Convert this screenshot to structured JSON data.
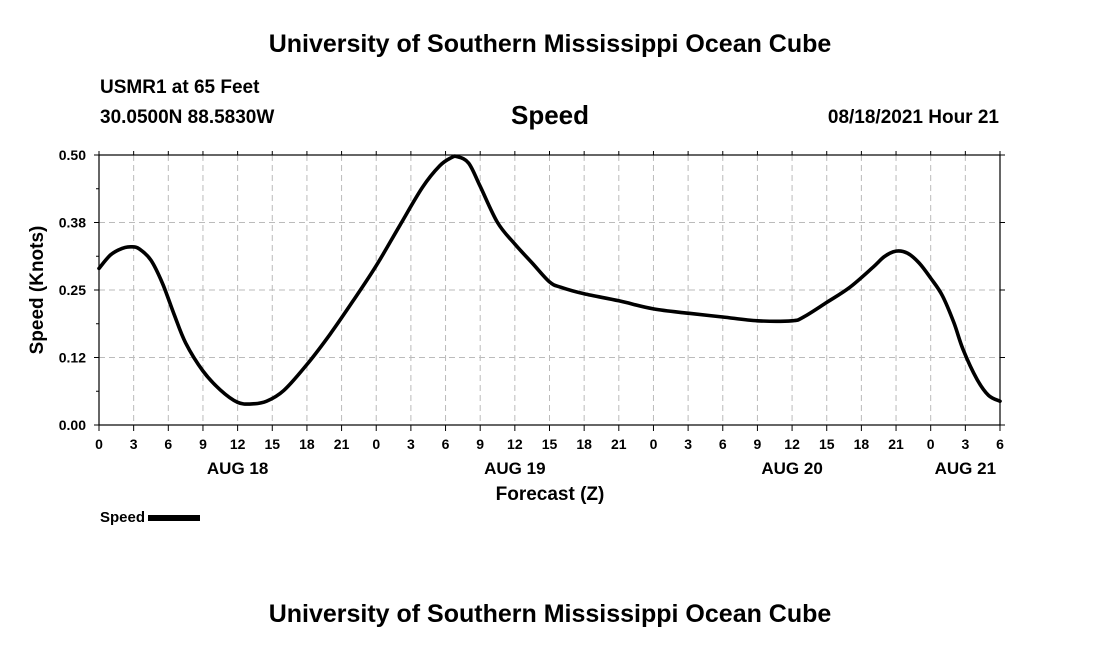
{
  "header": {
    "title": "University of Southern Mississippi Ocean Cube",
    "station": "USMR1 at 65 Feet",
    "coordinates": "30.0500N  88.5830W",
    "variable": "Speed",
    "datetime": "08/18/2021 Hour 21"
  },
  "footer": {
    "title": "University of Southern Mississippi Ocean Cube"
  },
  "legend": {
    "label": "Speed"
  },
  "chart_data": {
    "type": "line",
    "title": "Speed",
    "xlabel": "Forecast (Z)",
    "ylabel": "Speed (Knots)",
    "ylim": [
      0,
      0.5
    ],
    "xlim": [
      0,
      78
    ],
    "x_unit": "hours since AUG 18 00Z",
    "grid": true,
    "y_ticks": [
      0,
      0.125,
      0.25,
      0.375,
      0.5
    ],
    "y_tick_labels": [
      "0.00",
      "0.12",
      "0.25",
      "0.38",
      "0.50"
    ],
    "x_ticks": [
      0,
      3,
      6,
      9,
      12,
      15,
      18,
      21,
      24,
      27,
      30,
      33,
      36,
      39,
      42,
      45,
      48,
      51,
      54,
      57,
      60,
      63,
      66,
      69,
      72,
      75,
      78
    ],
    "x_tick_labels": [
      "0",
      "3",
      "6",
      "9",
      "12",
      "15",
      "18",
      "21",
      "0",
      "3",
      "6",
      "9",
      "12",
      "15",
      "18",
      "21",
      "0",
      "3",
      "6",
      "9",
      "12",
      "15",
      "18",
      "21",
      "0",
      "3",
      "6"
    ],
    "day_labels": [
      {
        "hour": 12,
        "label": "AUG 18"
      },
      {
        "hour": 36,
        "label": "AUG 19"
      },
      {
        "hour": 60,
        "label": "AUG 20"
      },
      {
        "hour": 75,
        "label": "AUG 21"
      }
    ],
    "series": [
      {
        "name": "Speed",
        "color": "#000000",
        "x": [
          0,
          1,
          2,
          2.8,
          3.5,
          4.5,
          5.5,
          6.5,
          7.5,
          9,
          10.5,
          12,
          13.2,
          14.5,
          16,
          18,
          20,
          22,
          24,
          26,
          28,
          29.5,
          30.5,
          31,
          32,
          33,
          34.5,
          36,
          37.5,
          39,
          40,
          42,
          45,
          48,
          51,
          54,
          57,
          60,
          61,
          63,
          65,
          67,
          68,
          69,
          70,
          71,
          72,
          73,
          74,
          74.8,
          76,
          77,
          78
        ],
        "values": [
          0.29,
          0.315,
          0.327,
          0.33,
          0.326,
          0.305,
          0.262,
          0.205,
          0.152,
          0.1,
          0.065,
          0.042,
          0.039,
          0.044,
          0.064,
          0.112,
          0.168,
          0.23,
          0.295,
          0.368,
          0.44,
          0.48,
          0.495,
          0.497,
          0.485,
          0.442,
          0.375,
          0.335,
          0.3,
          0.265,
          0.255,
          0.243,
          0.23,
          0.215,
          0.207,
          0.2,
          0.193,
          0.193,
          0.2,
          0.227,
          0.255,
          0.292,
          0.312,
          0.322,
          0.318,
          0.3,
          0.272,
          0.24,
          0.19,
          0.14,
          0.085,
          0.055,
          0.044
        ]
      }
    ]
  }
}
